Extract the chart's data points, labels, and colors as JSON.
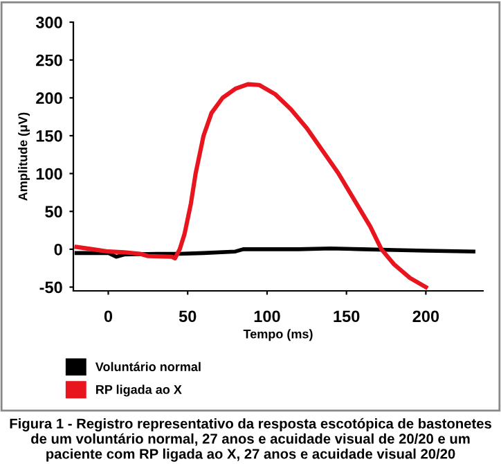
{
  "chart_data": {
    "type": "line",
    "xlabel": "Tempo (ms)",
    "ylabel": "Amplitude (μV)",
    "xlim": [
      -22,
      236
    ],
    "ylim": [
      -55,
      300
    ],
    "xticks": [
      0,
      50,
      100,
      150,
      200
    ],
    "yticks": [
      -50,
      0,
      50,
      100,
      150,
      200,
      250,
      300
    ],
    "grid": false,
    "legend": "bottom left",
    "marker": "none",
    "line_style": "solid",
    "series": [
      {
        "name": "Voluntário normal",
        "color": "#000000",
        "x": [
          -20,
          0,
          5,
          10,
          30,
          45,
          60,
          80,
          85,
          100,
          120,
          140,
          160,
          180,
          200,
          230
        ],
        "values": [
          -5,
          -5,
          -10,
          -7,
          -6,
          -6,
          -5,
          -3,
          0,
          0,
          0,
          1,
          0,
          -1,
          -2,
          -3
        ]
      },
      {
        "name": "RP ligada ao X",
        "color": "#e8141e",
        "x": [
          -20,
          -10,
          0,
          10,
          20,
          25,
          40,
          42,
          45,
          48,
          52,
          55,
          60,
          65,
          72,
          80,
          88,
          95,
          105,
          115,
          125,
          135,
          145,
          155,
          165,
          172,
          180,
          190,
          200
        ],
        "values": [
          3,
          0,
          -3,
          -4,
          -6,
          -9,
          -10,
          -12,
          0,
          20,
          60,
          100,
          150,
          180,
          200,
          212,
          218,
          217,
          205,
          185,
          160,
          130,
          100,
          65,
          30,
          0,
          -20,
          -38,
          -50
        ]
      }
    ],
    "annotations": [
      "Figura 1 - Registro representativo da resposta escotópica de bastonetes de um voluntário normal, 27 anos e acuidade visual de 20/20 e um paciente com RP ligada ao X, 27 anos e acuidade visual 20/20"
    ]
  }
}
